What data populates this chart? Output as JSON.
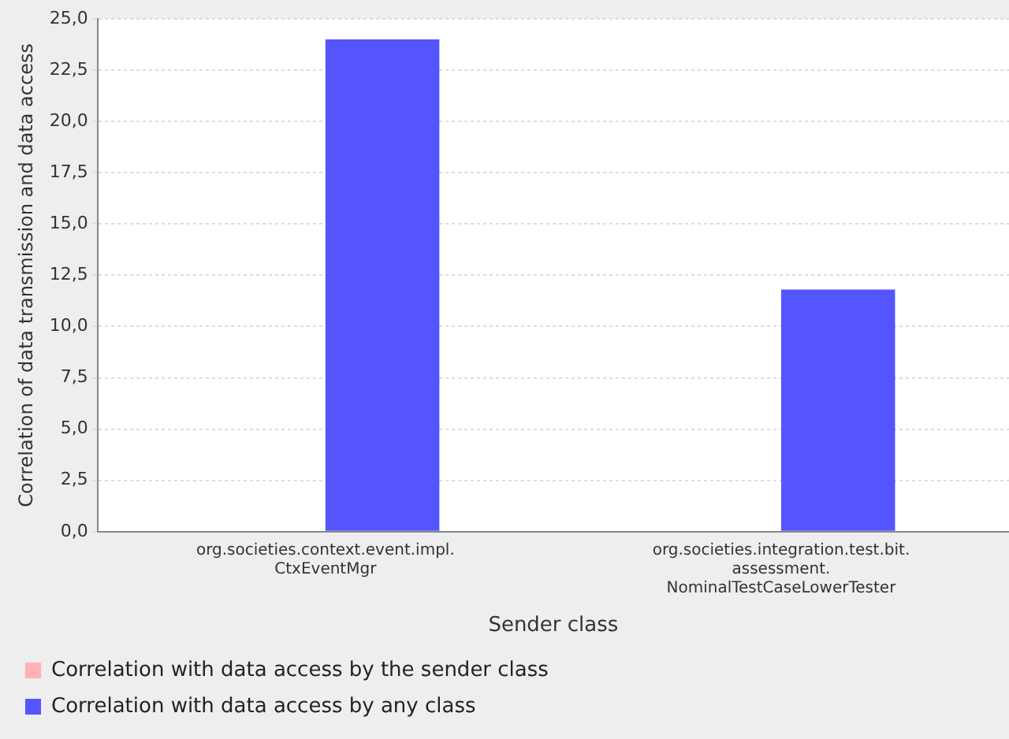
{
  "chart_data": {
    "type": "bar",
    "xlabel": "Sender class",
    "ylabel": "Correlation of data transmission and data access",
    "categories": [
      "org.societies.context.event.impl.\nCtxEventMgr",
      "org.societies.integration.test.bit.\nassessment.\nNominalTestCaseLowerTester"
    ],
    "series": [
      {
        "name": "Correlation with data access by the sender class",
        "color": "#ffb3b3",
        "values": [
          0,
          0
        ]
      },
      {
        "name": "Correlation with data access by any class",
        "color": "#5555ff",
        "values": [
          24.0,
          11.8
        ]
      }
    ],
    "ylim": [
      0,
      25
    ],
    "yticks": [
      {
        "value": 0,
        "label": "0,0"
      },
      {
        "value": 2.5,
        "label": "2,5"
      },
      {
        "value": 5,
        "label": "5,0"
      },
      {
        "value": 7.5,
        "label": "7,5"
      },
      {
        "value": 10,
        "label": "10,0"
      },
      {
        "value": 12.5,
        "label": "12,5"
      },
      {
        "value": 15,
        "label": "15,0"
      },
      {
        "value": 17.5,
        "label": "17,5"
      },
      {
        "value": 20,
        "label": "20,0"
      },
      {
        "value": 22.5,
        "label": "22,5"
      },
      {
        "value": 25,
        "label": "25,0"
      }
    ],
    "grid": "y",
    "legend": "bottom"
  }
}
